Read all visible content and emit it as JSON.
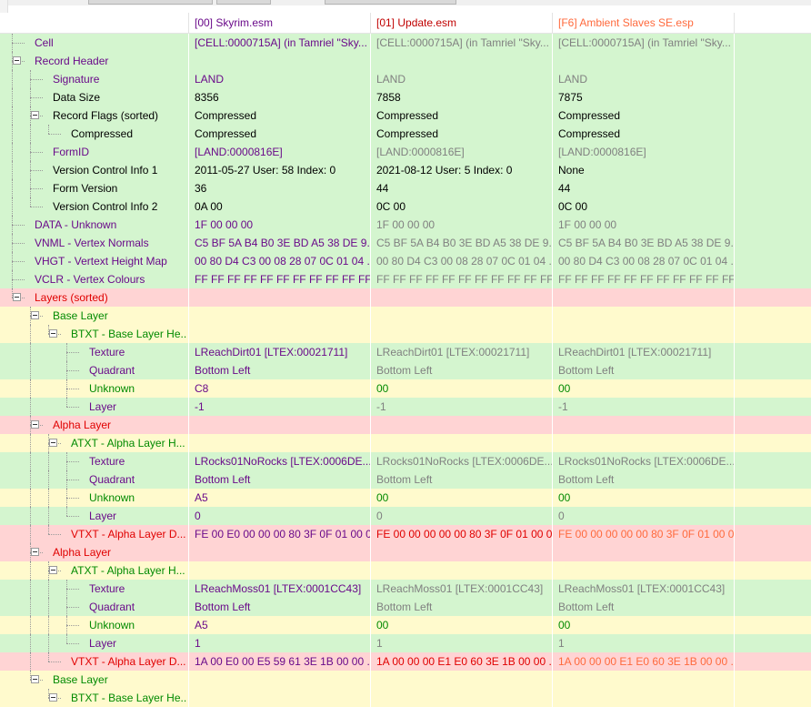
{
  "colors": {
    "green": "#d4f5cf",
    "yellow": "#fffacd",
    "red": "#ffd4d4",
    "text_purple": "#6a0a8a",
    "text_gray": "#808080",
    "text_red": "#e00000",
    "text_orange": "#ff6a3d",
    "text_black": "#000000",
    "text_green": "#008a00"
  },
  "header": {
    "columns": [
      {
        "label": "",
        "color": "#000000"
      },
      {
        "label": "[00] Skyrim.esm",
        "color": "#6a0a8a"
      },
      {
        "label": "[01] Update.esm",
        "color": "#c00000"
      },
      {
        "label": "[F6] Ambient Slaves SE.esp",
        "color": "#ff6a3d"
      }
    ]
  },
  "rows": [
    {
      "label": "Cell",
      "depth": 1,
      "expander": false,
      "bg": "green",
      "labelColor": "purple",
      "values": [
        "[CELL:0000715A] (in Tamriel \"Sky...",
        "[CELL:0000715A] (in Tamriel \"Sky...",
        "[CELL:0000715A] (in Tamriel \"Sky..."
      ],
      "valueColors": [
        "purple",
        "gray",
        "gray"
      ]
    },
    {
      "label": "Record Header",
      "depth": 1,
      "expander": true,
      "bg": "green",
      "labelColor": "purple",
      "values": [
        "",
        "",
        ""
      ],
      "valueColors": [
        "black",
        "black",
        "black"
      ]
    },
    {
      "label": "Signature",
      "depth": 2,
      "expander": false,
      "bg": "green",
      "labelColor": "purple",
      "values": [
        "LAND",
        "LAND",
        "LAND"
      ],
      "valueColors": [
        "purple",
        "gray",
        "gray"
      ]
    },
    {
      "label": "Data Size",
      "depth": 2,
      "expander": false,
      "bg": "green",
      "labelColor": "black",
      "values": [
        "8356",
        "7858",
        "7875"
      ],
      "valueColors": [
        "black",
        "black",
        "black"
      ]
    },
    {
      "label": "Record Flags (sorted)",
      "depth": 2,
      "expander": true,
      "bg": "green",
      "labelColor": "black",
      "values": [
        "Compressed",
        "Compressed",
        "Compressed"
      ],
      "valueColors": [
        "black",
        "black",
        "black"
      ]
    },
    {
      "label": "Compressed",
      "depth": 3,
      "expander": false,
      "bg": "green",
      "labelColor": "black",
      "values": [
        "Compressed",
        "Compressed",
        "Compressed"
      ],
      "valueColors": [
        "black",
        "black",
        "black"
      ]
    },
    {
      "label": "FormID",
      "depth": 2,
      "expander": false,
      "bg": "green",
      "labelColor": "purple",
      "values": [
        "[LAND:0000816E]",
        "[LAND:0000816E]",
        "[LAND:0000816E]"
      ],
      "valueColors": [
        "purple",
        "gray",
        "gray"
      ]
    },
    {
      "label": "Version Control Info 1",
      "depth": 2,
      "expander": false,
      "bg": "green",
      "labelColor": "black",
      "values": [
        "2011-05-27 User: 58 Index: 0",
        "2021-08-12 User: 5 Index: 0",
        "None"
      ],
      "valueColors": [
        "black",
        "black",
        "black"
      ]
    },
    {
      "label": "Form Version",
      "depth": 2,
      "expander": false,
      "bg": "green",
      "labelColor": "black",
      "values": [
        "36",
        "44",
        "44"
      ],
      "valueColors": [
        "black",
        "black",
        "black"
      ]
    },
    {
      "label": "Version Control Info 2",
      "depth": 2,
      "expander": false,
      "bg": "green",
      "labelColor": "black",
      "values": [
        "0A 00",
        "0C 00",
        "0C 00"
      ],
      "valueColors": [
        "black",
        "black",
        "black"
      ]
    },
    {
      "label": "DATA - Unknown",
      "depth": 1,
      "expander": false,
      "bg": "green",
      "labelColor": "purple",
      "values": [
        "1F 00 00 00",
        "1F 00 00 00",
        "1F 00 00 00"
      ],
      "valueColors": [
        "purple",
        "gray",
        "gray"
      ]
    },
    {
      "label": "VNML - Vertex Normals",
      "depth": 1,
      "expander": false,
      "bg": "green",
      "labelColor": "purple",
      "values": [
        "C5 BF 5A B4 B0 3E BD A5 38 DE 9...",
        "C5 BF 5A B4 B0 3E BD A5 38 DE 9...",
        "C5 BF 5A B4 B0 3E BD A5 38 DE 9..."
      ],
      "valueColors": [
        "purple",
        "gray",
        "gray"
      ]
    },
    {
      "label": "VHGT - Vertext Height Map",
      "depth": 1,
      "expander": false,
      "bg": "green",
      "labelColor": "purple",
      "values": [
        "00 80 D4 C3 00 08 28 07 0C 01 04 ...",
        "00 80 D4 C3 00 08 28 07 0C 01 04 ...",
        "00 80 D4 C3 00 08 28 07 0C 01 04 ..."
      ],
      "valueColors": [
        "purple",
        "gray",
        "gray"
      ]
    },
    {
      "label": "VCLR - Vertex Colours",
      "depth": 1,
      "expander": false,
      "bg": "green",
      "labelColor": "purple",
      "values": [
        "FF FF FF FF FF FF FF FF FF FF FF F...",
        "FF FF FF FF FF FF FF FF FF FF FF F...",
        "FF FF FF FF FF FF FF FF FF FF FF F..."
      ],
      "valueColors": [
        "purple",
        "gray",
        "gray"
      ]
    },
    {
      "label": "Layers (sorted)",
      "depth": 1,
      "expander": true,
      "bg": "red",
      "labelColor": "red",
      "values": [
        "",
        "",
        ""
      ],
      "valueColors": [
        "black",
        "black",
        "black"
      ]
    },
    {
      "label": "Base Layer",
      "depth": 2,
      "expander": true,
      "bg": "yellow",
      "labelColor": "green",
      "values": [
        "",
        "",
        ""
      ],
      "valueColors": [
        "black",
        "black",
        "black"
      ]
    },
    {
      "label": "BTXT - Base Layer He...",
      "depth": 3,
      "expander": true,
      "bg": "yellow",
      "labelColor": "green",
      "values": [
        "",
        "",
        ""
      ],
      "valueColors": [
        "black",
        "black",
        "black"
      ]
    },
    {
      "label": "Texture",
      "depth": 4,
      "expander": false,
      "bg": "green",
      "labelColor": "purple",
      "values": [
        "LReachDirt01 [LTEX:00021711]",
        "LReachDirt01 [LTEX:00021711]",
        "LReachDirt01 [LTEX:00021711]"
      ],
      "valueColors": [
        "purple",
        "gray",
        "gray"
      ]
    },
    {
      "label": "Quadrant",
      "depth": 4,
      "expander": false,
      "bg": "green",
      "labelColor": "purple",
      "values": [
        "Bottom Left",
        "Bottom Left",
        "Bottom Left"
      ],
      "valueColors": [
        "purple",
        "gray",
        "gray"
      ]
    },
    {
      "label": "Unknown",
      "depth": 4,
      "expander": false,
      "bg": "yellow",
      "labelColor": "green",
      "values": [
        "C8",
        "00",
        "00"
      ],
      "valueColors": [
        "purple",
        "green",
        "green"
      ]
    },
    {
      "label": "Layer",
      "depth": 4,
      "expander": false,
      "bg": "green",
      "labelColor": "purple",
      "values": [
        "-1",
        "-1",
        "-1"
      ],
      "valueColors": [
        "purple",
        "gray",
        "gray"
      ]
    },
    {
      "label": "Alpha Layer",
      "depth": 2,
      "expander": true,
      "bg": "red",
      "labelColor": "red",
      "values": [
        "",
        "",
        ""
      ],
      "valueColors": [
        "black",
        "black",
        "black"
      ]
    },
    {
      "label": "ATXT - Alpha Layer H...",
      "depth": 3,
      "expander": true,
      "bg": "yellow",
      "labelColor": "green",
      "values": [
        "",
        "",
        ""
      ],
      "valueColors": [
        "black",
        "black",
        "black"
      ]
    },
    {
      "label": "Texture",
      "depth": 4,
      "expander": false,
      "bg": "green",
      "labelColor": "purple",
      "values": [
        "LRocks01NoRocks [LTEX:0006DE...",
        "LRocks01NoRocks [LTEX:0006DE...",
        "LRocks01NoRocks [LTEX:0006DE..."
      ],
      "valueColors": [
        "purple",
        "gray",
        "gray"
      ]
    },
    {
      "label": "Quadrant",
      "depth": 4,
      "expander": false,
      "bg": "green",
      "labelColor": "purple",
      "values": [
        "Bottom Left",
        "Bottom Left",
        "Bottom Left"
      ],
      "valueColors": [
        "purple",
        "gray",
        "gray"
      ]
    },
    {
      "label": "Unknown",
      "depth": 4,
      "expander": false,
      "bg": "yellow",
      "labelColor": "green",
      "values": [
        "A5",
        "00",
        "00"
      ],
      "valueColors": [
        "purple",
        "green",
        "green"
      ]
    },
    {
      "label": "Layer",
      "depth": 4,
      "expander": false,
      "bg": "green",
      "labelColor": "purple",
      "values": [
        "0",
        "0",
        "0"
      ],
      "valueColors": [
        "purple",
        "gray",
        "gray"
      ]
    },
    {
      "label": "VTXT - Alpha Layer D...",
      "depth": 3,
      "expander": false,
      "bg": "red",
      "labelColor": "red",
      "values": [
        "FE 00 E0 00 00 00 80 3F 0F 01 00 0...",
        "FE 00 00 00 00 00 80 3F 0F 01 00 0...",
        "FE 00 00 00 00 00 80 3F 0F 01 00 0..."
      ],
      "valueColors": [
        "purple",
        "red",
        "orange"
      ]
    },
    {
      "label": "Alpha Layer",
      "depth": 2,
      "expander": true,
      "bg": "red",
      "labelColor": "red",
      "values": [
        "",
        "",
        ""
      ],
      "valueColors": [
        "black",
        "black",
        "black"
      ]
    },
    {
      "label": "ATXT - Alpha Layer H...",
      "depth": 3,
      "expander": true,
      "bg": "yellow",
      "labelColor": "green",
      "values": [
        "",
        "",
        ""
      ],
      "valueColors": [
        "black",
        "black",
        "black"
      ]
    },
    {
      "label": "Texture",
      "depth": 4,
      "expander": false,
      "bg": "green",
      "labelColor": "purple",
      "values": [
        "LReachMoss01 [LTEX:0001CC43]",
        "LReachMoss01 [LTEX:0001CC43]",
        "LReachMoss01 [LTEX:0001CC43]"
      ],
      "valueColors": [
        "purple",
        "gray",
        "gray"
      ]
    },
    {
      "label": "Quadrant",
      "depth": 4,
      "expander": false,
      "bg": "green",
      "labelColor": "purple",
      "values": [
        "Bottom Left",
        "Bottom Left",
        "Bottom Left"
      ],
      "valueColors": [
        "purple",
        "gray",
        "gray"
      ]
    },
    {
      "label": "Unknown",
      "depth": 4,
      "expander": false,
      "bg": "yellow",
      "labelColor": "green",
      "values": [
        "A5",
        "00",
        "00"
      ],
      "valueColors": [
        "purple",
        "green",
        "green"
      ]
    },
    {
      "label": "Layer",
      "depth": 4,
      "expander": false,
      "bg": "green",
      "labelColor": "purple",
      "values": [
        "1",
        "1",
        "1"
      ],
      "valueColors": [
        "purple",
        "gray",
        "gray"
      ]
    },
    {
      "label": "VTXT - Alpha Layer D...",
      "depth": 3,
      "expander": false,
      "bg": "red",
      "labelColor": "red",
      "values": [
        "1A 00 E0 00 E5 59 61 3E 1B 00 00 ...",
        "1A 00 00 00 E1 E0 60 3E 1B 00 00 ...",
        "1A 00 00 00 E1 E0 60 3E 1B 00 00 ..."
      ],
      "valueColors": [
        "purple",
        "red",
        "orange"
      ]
    },
    {
      "label": "Base Layer",
      "depth": 2,
      "expander": true,
      "bg": "yellow",
      "labelColor": "green",
      "values": [
        "",
        "",
        ""
      ],
      "valueColors": [
        "black",
        "black",
        "black"
      ]
    },
    {
      "label": "BTXT - Base Layer He...",
      "depth": 3,
      "expander": true,
      "bg": "yellow",
      "labelColor": "green",
      "values": [
        "",
        "",
        ""
      ],
      "valueColors": [
        "black",
        "black",
        "black"
      ]
    }
  ]
}
